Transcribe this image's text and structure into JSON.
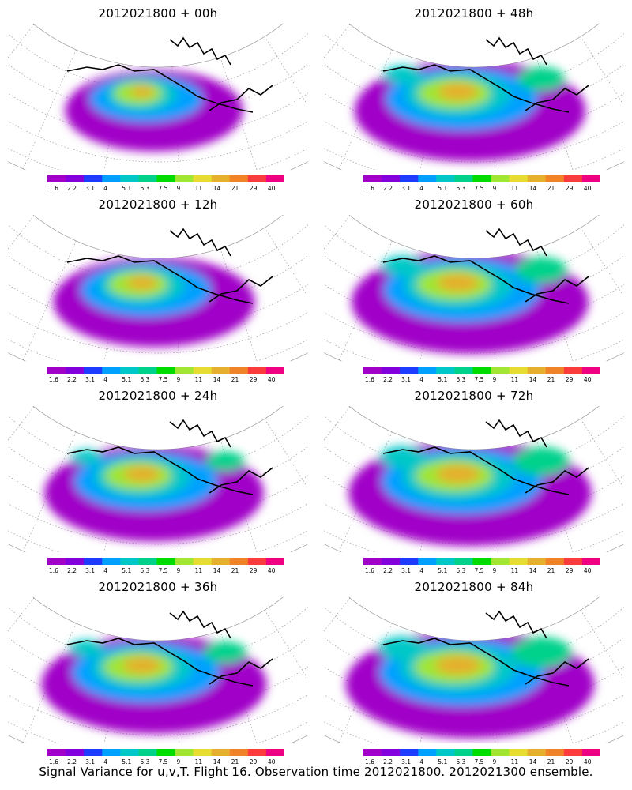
{
  "colorbar": {
    "colors": [
      "#a000c8",
      "#8200dc",
      "#1e3cff",
      "#00a0ff",
      "#00c8c8",
      "#00d28c",
      "#00dc00",
      "#a0e632",
      "#e6dc32",
      "#e6af2d",
      "#f08228",
      "#fa3c3c",
      "#f00082"
    ],
    "ticks": [
      "1.6",
      "2.2",
      "3.1",
      "4",
      "5.1",
      "6.3",
      "7.5",
      "9",
      "11",
      "14",
      "21",
      "29",
      "40"
    ]
  },
  "panels": [
    {
      "title": "2012021800  +  00h",
      "intensity": 0.1
    },
    {
      "title": "2012021800  +  48h",
      "intensity": 0.55
    },
    {
      "title": "2012021800  +  12h",
      "intensity": 0.3
    },
    {
      "title": "2012021800  +  60h",
      "intensity": 0.6
    },
    {
      "title": "2012021800  +  24h",
      "intensity": 0.45
    },
    {
      "title": "2012021800  +  72h",
      "intensity": 0.65
    },
    {
      "title": "2012021800  +  36h",
      "intensity": 0.5
    },
    {
      "title": "2012021800  +  84h",
      "intensity": 0.7
    }
  ],
  "caption": "Signal Variance for u,v,T. Flight 16. Observation time 2012021800. 2012021300 ensemble."
}
